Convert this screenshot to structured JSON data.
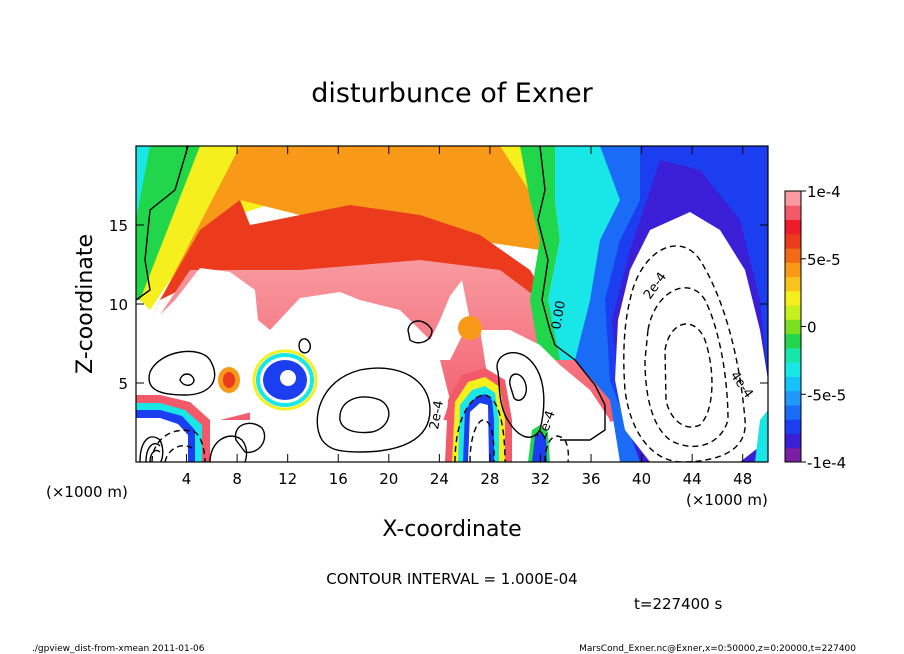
{
  "chart_data": {
    "type": "heatmap",
    "title": "disturbunce of Exner",
    "xlabel": "X-coordinate",
    "ylabel": "Z-coordinate",
    "x_unit": "(×1000 m)",
    "y_unit": "(×1000 m)",
    "x_ticks": [
      4,
      8,
      12,
      16,
      20,
      24,
      28,
      32,
      36,
      40,
      44,
      48
    ],
    "y_ticks": [
      5,
      10,
      15
    ],
    "xlim": [
      0,
      50
    ],
    "ylim": [
      0,
      20
    ],
    "colorbar": {
      "range": [
        -0.0001,
        0.0001
      ],
      "tick_labels": [
        {
          "value": 0.0001,
          "label": "1e-4"
        },
        {
          "value": 5e-05,
          "label": "5e-5"
        },
        {
          "value": 0,
          "label": "0"
        },
        {
          "value": -5e-05,
          "label": "-5e-5"
        },
        {
          "value": -0.0001,
          "label": "-1e-4"
        }
      ],
      "colors": [
        "#7a1fa2",
        "#3a1fd6",
        "#1a3ef0",
        "#1a6cf6",
        "#1f98fa",
        "#15c3fa",
        "#19e6e6",
        "#18e6a8",
        "#22d64c",
        "#7adf1f",
        "#c8ef1f",
        "#f6ef1e",
        "#f8c41c",
        "#f89a17",
        "#f26a16",
        "#ec3a1c",
        "#ee1c28",
        "#f25a6a",
        "#f89aa0"
      ]
    },
    "contour_labels": [
      "0.00",
      "2e-4",
      "2e-4",
      "2e-4",
      "4e-4"
    ],
    "contour_interval_text": "CONTOUR INTERVAL = 1.000E-04",
    "time_text": "t=227400 s"
  },
  "footer": {
    "left": "./gpview_dist-from-xmean  2011-01-06",
    "right": "MarsCond_Exner.nc@Exner,x=0:50000,z=0:20000,t=227400"
  }
}
